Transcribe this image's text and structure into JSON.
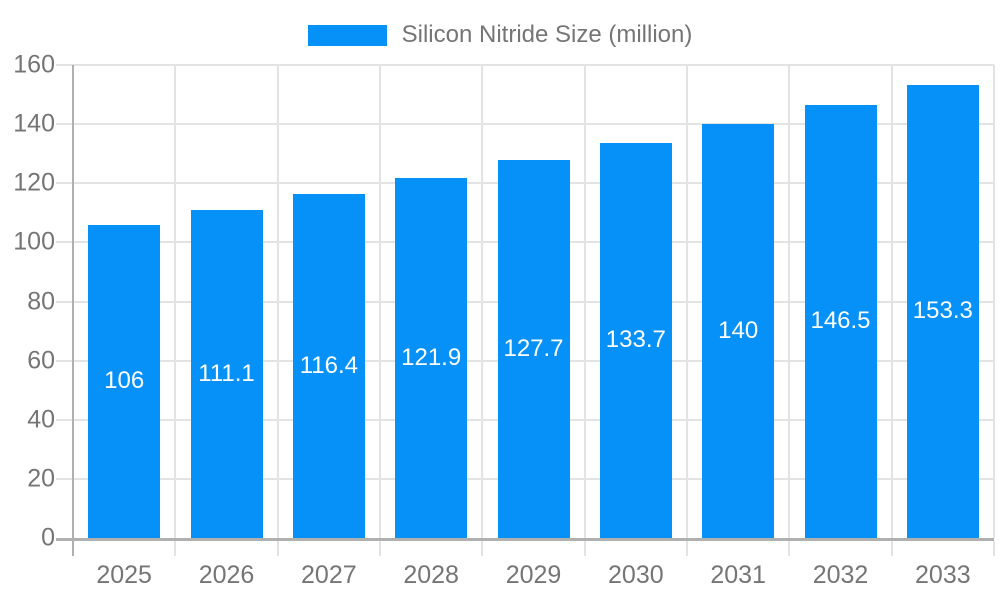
{
  "chart_data": {
    "type": "bar",
    "title": "",
    "legend": {
      "position": "top"
    },
    "categories": [
      "2025",
      "2026",
      "2027",
      "2028",
      "2029",
      "2030",
      "2031",
      "2032",
      "2033"
    ],
    "series": [
      {
        "name": "Silicon Nitride Size (million)",
        "values": [
          106,
          111.1,
          116.4,
          121.9,
          127.7,
          133.7,
          140,
          146.5,
          153.3
        ]
      }
    ],
    "value_labels": [
      "106",
      "111.1",
      "116.4",
      "121.9",
      "127.7",
      "133.7",
      "140",
      "146.5",
      "153.3"
    ],
    "xlabel": "",
    "ylabel": "",
    "ylim": [
      0,
      160
    ],
    "ytick_step": 20,
    "ytick_labels": [
      "0",
      "20",
      "40",
      "60",
      "80",
      "100",
      "120",
      "140",
      "160"
    ],
    "grid": true,
    "colors": {
      "bar": "#0591f8",
      "grid": "#e3e3e3",
      "axis": "#b0b0b0",
      "tick_label": "#757575",
      "value_label": "#ffffff",
      "legend_text": "#757575",
      "background": "#ffffff"
    }
  }
}
